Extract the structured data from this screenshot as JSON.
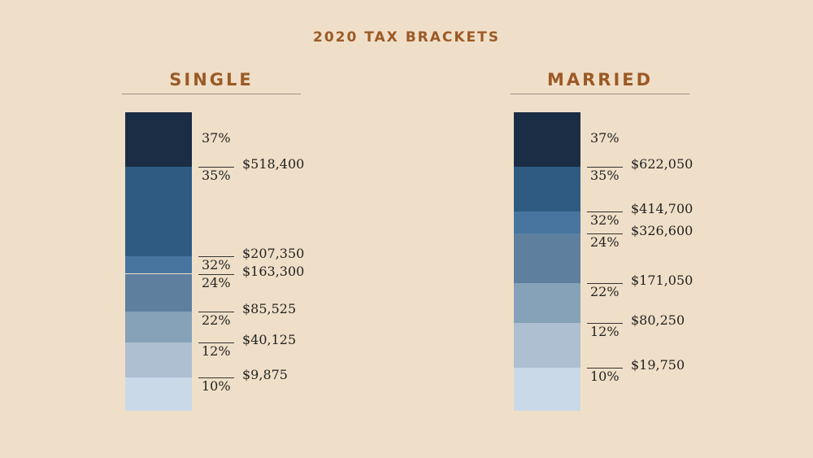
{
  "title": "2020 TAX BRACKETS",
  "chart_data": [
    {
      "type": "bar",
      "title": "SINGLE",
      "brackets": [
        {
          "rate": "10%",
          "threshold": "$9,875",
          "lower": 0,
          "upper": 9875
        },
        {
          "rate": "12%",
          "threshold": "$40,125",
          "lower": 9875,
          "upper": 40125
        },
        {
          "rate": "22%",
          "threshold": "$85,525",
          "lower": 40125,
          "upper": 85525
        },
        {
          "rate": "24%",
          "threshold": "$163,300",
          "lower": 85525,
          "upper": 163300
        },
        {
          "rate": "32%",
          "threshold": "$207,350",
          "lower": 163300,
          "upper": 207350
        },
        {
          "rate": "35%",
          "threshold": "$518,400",
          "lower": 207350,
          "upper": 518400
        },
        {
          "rate": "37%",
          "threshold": "",
          "lower": 518400,
          "upper": null
        }
      ]
    },
    {
      "type": "bar",
      "title": "MARRIED",
      "brackets": [
        {
          "rate": "10%",
          "threshold": "$19,750",
          "lower": 0,
          "upper": 19750
        },
        {
          "rate": "12%",
          "threshold": "$80,250",
          "lower": 19750,
          "upper": 80250
        },
        {
          "rate": "22%",
          "threshold": "$171,050",
          "lower": 80250,
          "upper": 171050
        },
        {
          "rate": "24%",
          "threshold": "$326,600",
          "lower": 171050,
          "upper": 326600
        },
        {
          "rate": "32%",
          "threshold": "$414,700",
          "lower": 326600,
          "upper": 414700
        },
        {
          "rate": "35%",
          "threshold": "$622,050",
          "lower": 414700,
          "upper": 622050
        },
        {
          "rate": "37%",
          "threshold": "",
          "lower": 622050,
          "upper": null
        }
      ]
    }
  ],
  "colors": {
    "title": "#9c5a26",
    "segments": [
      "#c9d9e7",
      "#adbfd1",
      "#85a2b8",
      "#5e7f9e",
      "#4775a0",
      "#2f5b82",
      "#1b2d45"
    ]
  }
}
